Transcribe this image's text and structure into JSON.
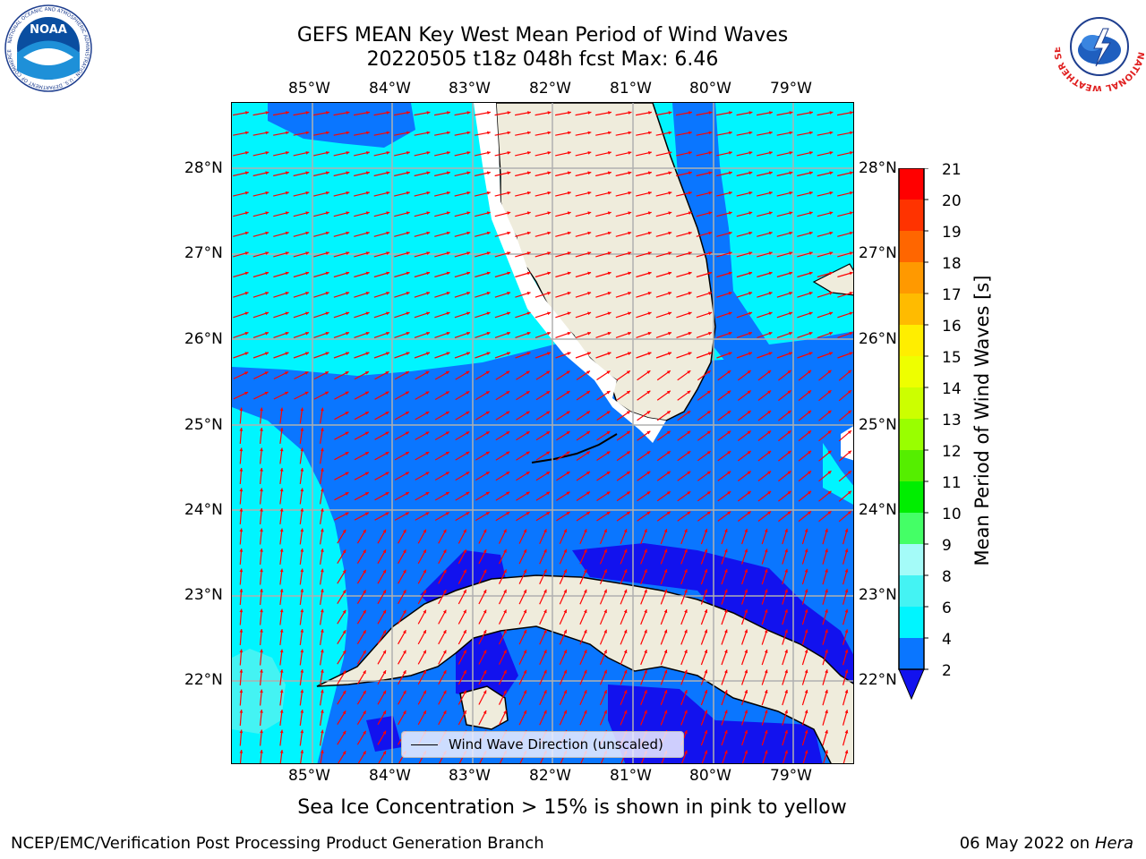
{
  "title": {
    "line1": "GEFS MEAN Key West Mean Period of Wind Waves",
    "line2": "20220505 t18z 048h fcst   Max: 6.46"
  },
  "map": {
    "lon_labels": [
      "85°W",
      "84°W",
      "83°W",
      "82°W",
      "81°W",
      "80°W",
      "79°W"
    ],
    "lat_labels": [
      "28°N",
      "27°N",
      "26°N",
      "25°N",
      "24°N",
      "23°N",
      "22°N"
    ],
    "legend_label": "Wind Wave Direction (unscaled)",
    "arrow_color": "#ff0000",
    "land_color": "#efecdc"
  },
  "colorbar": {
    "title": "Mean Period of Wind Waves [s]",
    "ticks": [
      "21",
      "20",
      "19",
      "18",
      "17",
      "16",
      "15",
      "14",
      "13",
      "12",
      "11",
      "10",
      "9",
      "8",
      "6",
      "4",
      "2"
    ],
    "colors": {
      "2_4": "#0a76ff",
      "4_6": "#00f5ff",
      "6_8": "#44f3f3",
      "8_9": "#a4fbf8",
      "dark_blue": "#1212ee"
    }
  },
  "notes": {
    "ice": "Sea Ice Concentration > 15% is shown in pink to yellow"
  },
  "footer": {
    "left": "NCEP/EMC/Verification Post Processing Product Generation Branch",
    "date": "06 May 2022 on",
    "machine": "Hera"
  },
  "logos": {
    "noaa_text": "NOAA",
    "noaa_ring": "NATIONAL OCEANIC AND ATMOSPHERIC ADMINISTRATION · U.S. DEPARTMENT OF COMMERCE",
    "nws_ring": "NATIONAL WEATHER SERVICE"
  }
}
